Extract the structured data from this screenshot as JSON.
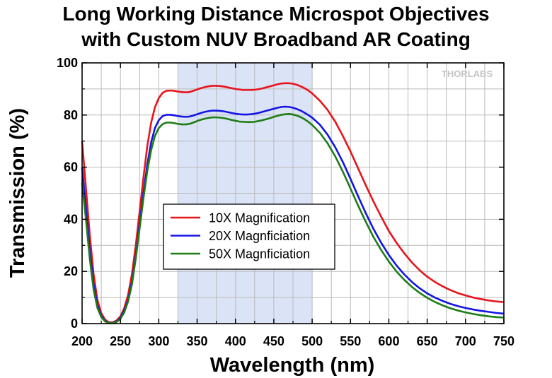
{
  "chart_data": {
    "type": "line",
    "title": [
      "Long Working Distance Microspot Objectives",
      "with Custom NUV Broadband AR Coating"
    ],
    "xlabel": "Wavelength (nm)",
    "ylabel": "Transmission (%)",
    "xlim": [
      200,
      750
    ],
    "ylim": [
      0,
      100
    ],
    "xticks": [
      200,
      250,
      300,
      350,
      400,
      450,
      500,
      550,
      600,
      650,
      700,
      750
    ],
    "yticks": [
      0,
      20,
      40,
      60,
      80,
      100
    ],
    "grid": true,
    "highlight_band": {
      "x_start": 325,
      "x_end": 500,
      "color": "#dbe4f6"
    },
    "watermark": "THORLABS",
    "legend_position": "center-left",
    "series": [
      {
        "name": "10X Magnification",
        "color": "#e8141c",
        "points": [
          [
            200,
            70
          ],
          [
            205,
            52
          ],
          [
            210,
            34
          ],
          [
            215,
            19
          ],
          [
            220,
            9
          ],
          [
            225,
            4
          ],
          [
            230,
            1.5
          ],
          [
            235,
            0.5
          ],
          [
            240,
            0.5
          ],
          [
            245,
            1.2
          ],
          [
            250,
            2.8
          ],
          [
            255,
            6
          ],
          [
            260,
            11
          ],
          [
            265,
            19
          ],
          [
            270,
            30
          ],
          [
            275,
            43
          ],
          [
            280,
            56
          ],
          [
            285,
            68
          ],
          [
            290,
            77
          ],
          [
            295,
            83
          ],
          [
            300,
            86.5
          ],
          [
            305,
            88.5
          ],
          [
            310,
            89.3
          ],
          [
            315,
            89.4
          ],
          [
            320,
            89.3
          ],
          [
            325,
            89
          ],
          [
            330,
            88.8
          ],
          [
            335,
            88.7
          ],
          [
            340,
            88.8
          ],
          [
            345,
            89.3
          ],
          [
            350,
            89.8
          ],
          [
            355,
            90.3
          ],
          [
            360,
            90.7
          ],
          [
            365,
            91
          ],
          [
            370,
            91.2
          ],
          [
            375,
            91.2
          ],
          [
            380,
            91.1
          ],
          [
            385,
            90.9
          ],
          [
            390,
            90.6
          ],
          [
            395,
            90.3
          ],
          [
            400,
            90
          ],
          [
            405,
            89.8
          ],
          [
            410,
            89.6
          ],
          [
            415,
            89.6
          ],
          [
            420,
            89.6
          ],
          [
            425,
            89.7
          ],
          [
            430,
            89.9
          ],
          [
            435,
            90.2
          ],
          [
            440,
            90.6
          ],
          [
            445,
            91
          ],
          [
            450,
            91.4
          ],
          [
            455,
            91.8
          ],
          [
            460,
            92.1
          ],
          [
            465,
            92.2
          ],
          [
            470,
            92.2
          ],
          [
            475,
            92
          ],
          [
            480,
            91.6
          ],
          [
            485,
            91
          ],
          [
            490,
            90.3
          ],
          [
            495,
            89.4
          ],
          [
            500,
            88.3
          ],
          [
            510,
            85.5
          ],
          [
            520,
            82
          ],
          [
            530,
            77.5
          ],
          [
            540,
            72
          ],
          [
            550,
            66
          ],
          [
            560,
            59.5
          ],
          [
            570,
            53
          ],
          [
            580,
            46.8
          ],
          [
            590,
            41
          ],
          [
            600,
            35.5
          ],
          [
            610,
            31
          ],
          [
            620,
            27
          ],
          [
            630,
            23.5
          ],
          [
            640,
            20.5
          ],
          [
            650,
            18
          ],
          [
            660,
            16
          ],
          [
            670,
            14.3
          ],
          [
            680,
            12.9
          ],
          [
            690,
            11.7
          ],
          [
            700,
            10.8
          ],
          [
            710,
            10
          ],
          [
            720,
            9.4
          ],
          [
            730,
            8.9
          ],
          [
            740,
            8.5
          ],
          [
            750,
            8.2
          ]
        ]
      },
      {
        "name": "20X Magnficiation",
        "color": "#1414e6",
        "points": [
          [
            200,
            60
          ],
          [
            205,
            44
          ],
          [
            210,
            28
          ],
          [
            215,
            15
          ],
          [
            220,
            7
          ],
          [
            225,
            3
          ],
          [
            230,
            1
          ],
          [
            235,
            0.3
          ],
          [
            240,
            0.3
          ],
          [
            245,
            0.8
          ],
          [
            250,
            2.2
          ],
          [
            255,
            5
          ],
          [
            260,
            9
          ],
          [
            265,
            16
          ],
          [
            270,
            26
          ],
          [
            275,
            38
          ],
          [
            280,
            50
          ],
          [
            285,
            61
          ],
          [
            290,
            69.5
          ],
          [
            295,
            75
          ],
          [
            300,
            78
          ],
          [
            305,
            79.6
          ],
          [
            310,
            80.1
          ],
          [
            315,
            80.1
          ],
          [
            320,
            79.9
          ],
          [
            325,
            79.6
          ],
          [
            330,
            79.4
          ],
          [
            335,
            79.3
          ],
          [
            340,
            79.4
          ],
          [
            345,
            79.8
          ],
          [
            350,
            80.3
          ],
          [
            355,
            80.8
          ],
          [
            360,
            81.2
          ],
          [
            365,
            81.5
          ],
          [
            370,
            81.7
          ],
          [
            375,
            81.7
          ],
          [
            380,
            81.6
          ],
          [
            385,
            81.4
          ],
          [
            390,
            81.1
          ],
          [
            395,
            80.8
          ],
          [
            400,
            80.5
          ],
          [
            405,
            80.3
          ],
          [
            410,
            80.2
          ],
          [
            415,
            80.2
          ],
          [
            420,
            80.3
          ],
          [
            425,
            80.5
          ],
          [
            430,
            80.8
          ],
          [
            435,
            81.2
          ],
          [
            440,
            81.6
          ],
          [
            445,
            82
          ],
          [
            450,
            82.4
          ],
          [
            455,
            82.8
          ],
          [
            460,
            83.1
          ],
          [
            465,
            83.2
          ],
          [
            470,
            83.1
          ],
          [
            475,
            82.8
          ],
          [
            480,
            82.3
          ],
          [
            485,
            81.7
          ],
          [
            490,
            80.9
          ],
          [
            495,
            80
          ],
          [
            500,
            79
          ],
          [
            510,
            76.3
          ],
          [
            520,
            72.5
          ],
          [
            530,
            67.7
          ],
          [
            540,
            62
          ],
          [
            550,
            55.5
          ],
          [
            560,
            48.8
          ],
          [
            570,
            42.3
          ],
          [
            580,
            36.3
          ],
          [
            590,
            31
          ],
          [
            600,
            26.3
          ],
          [
            610,
            22.3
          ],
          [
            620,
            18.9
          ],
          [
            630,
            16
          ],
          [
            640,
            13.6
          ],
          [
            650,
            11.6
          ],
          [
            660,
            10
          ],
          [
            670,
            8.7
          ],
          [
            680,
            7.6
          ],
          [
            690,
            6.7
          ],
          [
            700,
            6
          ],
          [
            710,
            5.4
          ],
          [
            720,
            4.9
          ],
          [
            730,
            4.5
          ],
          [
            740,
            4.1
          ],
          [
            750,
            3.8
          ]
        ]
      },
      {
        "name": "50X Magnficiation",
        "color": "#1e7d14",
        "points": [
          [
            200,
            54
          ],
          [
            205,
            40
          ],
          [
            210,
            25
          ],
          [
            215,
            13
          ],
          [
            220,
            6
          ],
          [
            225,
            2.5
          ],
          [
            230,
            0.8
          ],
          [
            235,
            0.2
          ],
          [
            240,
            0.2
          ],
          [
            245,
            0.6
          ],
          [
            250,
            1.8
          ],
          [
            255,
            4.3
          ],
          [
            260,
            8.5
          ],
          [
            265,
            15
          ],
          [
            270,
            25
          ],
          [
            275,
            36.5
          ],
          [
            280,
            48
          ],
          [
            285,
            58.5
          ],
          [
            290,
            66.5
          ],
          [
            295,
            72
          ],
          [
            300,
            75
          ],
          [
            305,
            76.5
          ],
          [
            310,
            77.1
          ],
          [
            315,
            77.1
          ],
          [
            320,
            76.9
          ],
          [
            325,
            76.6
          ],
          [
            330,
            76.4
          ],
          [
            335,
            76.4
          ],
          [
            340,
            76.6
          ],
          [
            345,
            77.1
          ],
          [
            350,
            77.7
          ],
          [
            355,
            78.2
          ],
          [
            360,
            78.6
          ],
          [
            365,
            78.9
          ],
          [
            370,
            79.1
          ],
          [
            375,
            79.1
          ],
          [
            380,
            79
          ],
          [
            385,
            78.8
          ],
          [
            390,
            78.5
          ],
          [
            395,
            78.1
          ],
          [
            400,
            77.8
          ],
          [
            405,
            77.5
          ],
          [
            410,
            77.4
          ],
          [
            415,
            77.3
          ],
          [
            420,
            77.3
          ],
          [
            425,
            77.4
          ],
          [
            430,
            77.7
          ],
          [
            435,
            78
          ],
          [
            440,
            78.4
          ],
          [
            445,
            78.8
          ],
          [
            450,
            79.3
          ],
          [
            455,
            79.7
          ],
          [
            460,
            80.1
          ],
          [
            465,
            80.3
          ],
          [
            470,
            80.4
          ],
          [
            475,
            80.2
          ],
          [
            480,
            79.8
          ],
          [
            485,
            79.2
          ],
          [
            490,
            78.4
          ],
          [
            495,
            77.4
          ],
          [
            500,
            76.2
          ],
          [
            510,
            73.2
          ],
          [
            520,
            69.2
          ],
          [
            530,
            64.2
          ],
          [
            540,
            58.3
          ],
          [
            550,
            51.8
          ],
          [
            560,
            45.2
          ],
          [
            570,
            39
          ],
          [
            580,
            33.2
          ],
          [
            590,
            28.2
          ],
          [
            600,
            23.8
          ],
          [
            610,
            20
          ],
          [
            620,
            16.8
          ],
          [
            630,
            14.1
          ],
          [
            640,
            11.8
          ],
          [
            650,
            9.9
          ],
          [
            660,
            8.3
          ],
          [
            670,
            7
          ],
          [
            680,
            5.9
          ],
          [
            690,
            5
          ],
          [
            700,
            4.3
          ],
          [
            710,
            3.7
          ],
          [
            720,
            3.2
          ],
          [
            730,
            2.8
          ],
          [
            740,
            2.5
          ],
          [
            750,
            2.3
          ]
        ]
      }
    ]
  }
}
